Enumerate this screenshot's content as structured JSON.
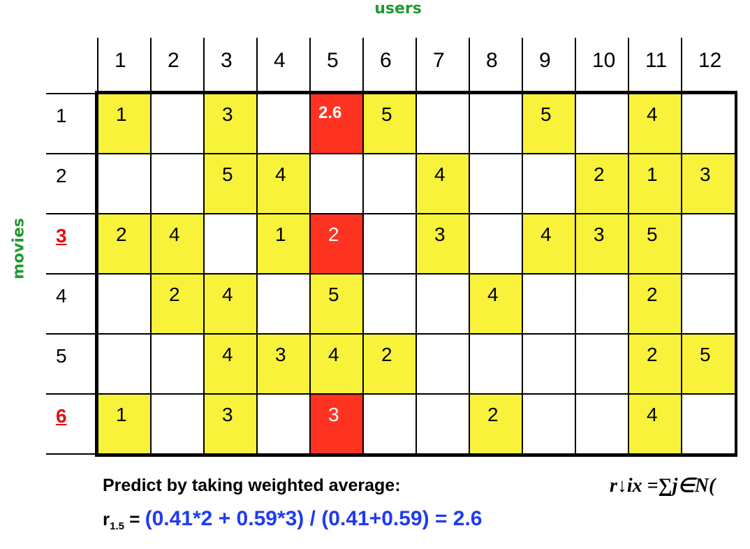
{
  "axis": {
    "users_label": "users",
    "movies_label": "movies"
  },
  "columns": [
    "1",
    "2",
    "3",
    "4",
    "5",
    "6",
    "7",
    "8",
    "9",
    "10",
    "11",
    "12"
  ],
  "rows": [
    {
      "label": "1",
      "highlight": false
    },
    {
      "label": "2",
      "highlight": false
    },
    {
      "label": "3",
      "highlight": true
    },
    {
      "label": "4",
      "highlight": false
    },
    {
      "label": "5",
      "highlight": false
    },
    {
      "label": "6",
      "highlight": true
    }
  ],
  "cells": [
    {
      "row": 1,
      "col": 1,
      "value": "1",
      "fill": "yellow"
    },
    {
      "row": 1,
      "col": 3,
      "value": "3",
      "fill": "yellow"
    },
    {
      "row": 1,
      "col": 5,
      "value": "2.6",
      "fill": "red",
      "emphasis": true
    },
    {
      "row": 1,
      "col": 6,
      "value": "5",
      "fill": "yellow"
    },
    {
      "row": 1,
      "col": 9,
      "value": "5",
      "fill": "yellow"
    },
    {
      "row": 1,
      "col": 11,
      "value": "4",
      "fill": "yellow"
    },
    {
      "row": 2,
      "col": 3,
      "value": "5",
      "fill": "yellow"
    },
    {
      "row": 2,
      "col": 4,
      "value": "4",
      "fill": "yellow"
    },
    {
      "row": 2,
      "col": 7,
      "value": "4",
      "fill": "yellow"
    },
    {
      "row": 2,
      "col": 10,
      "value": "2",
      "fill": "yellow"
    },
    {
      "row": 2,
      "col": 11,
      "value": "1",
      "fill": "yellow"
    },
    {
      "row": 2,
      "col": 12,
      "value": "3",
      "fill": "yellow"
    },
    {
      "row": 3,
      "col": 1,
      "value": "2",
      "fill": "yellow"
    },
    {
      "row": 3,
      "col": 2,
      "value": "4",
      "fill": "yellow"
    },
    {
      "row": 3,
      "col": 4,
      "value": "1",
      "fill": "yellow"
    },
    {
      "row": 3,
      "col": 5,
      "value": "2",
      "fill": "red"
    },
    {
      "row": 3,
      "col": 7,
      "value": "3",
      "fill": "yellow"
    },
    {
      "row": 3,
      "col": 9,
      "value": "4",
      "fill": "yellow"
    },
    {
      "row": 3,
      "col": 10,
      "value": "3",
      "fill": "yellow"
    },
    {
      "row": 3,
      "col": 11,
      "value": "5",
      "fill": "yellow"
    },
    {
      "row": 4,
      "col": 2,
      "value": "2",
      "fill": "yellow"
    },
    {
      "row": 4,
      "col": 3,
      "value": "4",
      "fill": "yellow"
    },
    {
      "row": 4,
      "col": 5,
      "value": "5",
      "fill": "yellow"
    },
    {
      "row": 4,
      "col": 8,
      "value": "4",
      "fill": "yellow"
    },
    {
      "row": 4,
      "col": 11,
      "value": "2",
      "fill": "yellow"
    },
    {
      "row": 5,
      "col": 3,
      "value": "4",
      "fill": "yellow"
    },
    {
      "row": 5,
      "col": 4,
      "value": "3",
      "fill": "yellow"
    },
    {
      "row": 5,
      "col": 5,
      "value": "4",
      "fill": "yellow"
    },
    {
      "row": 5,
      "col": 6,
      "value": "2",
      "fill": "yellow"
    },
    {
      "row": 5,
      "col": 11,
      "value": "2",
      "fill": "yellow"
    },
    {
      "row": 5,
      "col": 12,
      "value": "5",
      "fill": "yellow"
    },
    {
      "row": 6,
      "col": 1,
      "value": "1",
      "fill": "yellow"
    },
    {
      "row": 6,
      "col": 3,
      "value": "3",
      "fill": "yellow"
    },
    {
      "row": 6,
      "col": 5,
      "value": "3",
      "fill": "red"
    },
    {
      "row": 6,
      "col": 8,
      "value": "2",
      "fill": "yellow"
    },
    {
      "row": 6,
      "col": 11,
      "value": "4",
      "fill": "yellow"
    }
  ],
  "colors": {
    "yellow": "#f8f23b",
    "red": "#ff3322",
    "green_label": "#1f9a2f",
    "blue_expr": "#1f3cf0",
    "red_row": "#e01010"
  },
  "caption": {
    "predict": "Predict by taking weighted average:",
    "formula": "r↓ix =∑j∈N(",
    "calc_var": "r",
    "calc_sub": "1.5",
    "calc_eq": " = ",
    "calc_expr": "(0.41*2 + 0.59*3) / (0.41+0.59) = 2.6"
  }
}
